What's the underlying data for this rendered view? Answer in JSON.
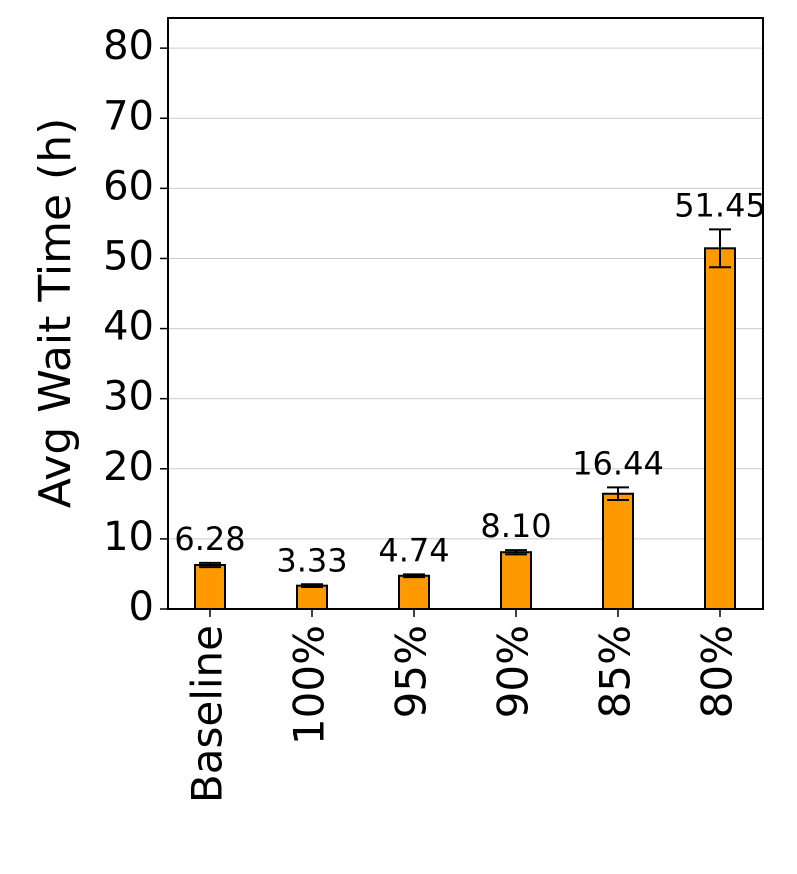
{
  "chart_data": {
    "type": "bar",
    "y_label": "Avg Wait Time (h)",
    "categories": [
      "Baseline",
      "100%",
      "95%",
      "90%",
      "85%",
      "80%"
    ],
    "values": [
      6.28,
      3.33,
      4.74,
      8.1,
      16.44,
      51.45
    ],
    "value_labels": [
      "6.28",
      "3.33",
      "4.74",
      "8.10",
      "16.44",
      "51.45"
    ],
    "errors": [
      0.3,
      0.2,
      0.2,
      0.3,
      0.9,
      2.7
    ],
    "color": "#ff9900",
    "ylim": [
      0,
      84.3
    ],
    "yticks": [
      0,
      10,
      20,
      30,
      40,
      50,
      60,
      70,
      80
    ],
    "grid": true
  }
}
